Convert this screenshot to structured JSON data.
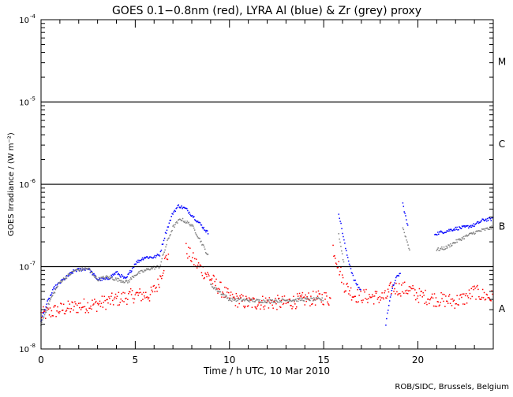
{
  "chart_data": {
    "type": "scatter",
    "title": "GOES 0.1−0.8nm (red), LYRA Al (blue) & Zr (grey) proxy",
    "xlabel": "Time / h UTC, 10 Mar 2010",
    "ylabel": "GOES Irradiance / (W m⁻²)",
    "xlim": [
      0,
      24
    ],
    "ylim": [
      1e-08,
      0.0001
    ],
    "yscale": "log",
    "xticks": [
      0,
      5,
      10,
      15,
      20
    ],
    "xtick_labels": [
      "0",
      "5",
      "10",
      "15",
      "20"
    ],
    "yticks": [
      1e-08,
      1e-07,
      1e-06,
      1e-05,
      0.0001
    ],
    "ytick_exponents": [
      "-8",
      "-7",
      "-6",
      "-5",
      "-4"
    ],
    "ytick_base": "10",
    "class_lines": [
      1e-07,
      1e-06,
      1e-05
    ],
    "class_labels": [
      {
        "label": "A",
        "value": 3.16e-08
      },
      {
        "label": "B",
        "value": 3.16e-07
      },
      {
        "label": "C",
        "value": 3.16e-06
      },
      {
        "label": "M",
        "value": 3.16e-05
      }
    ],
    "credit": "ROB/SIDC, Brussels, Belgium",
    "series": [
      {
        "name": "GOES 0.1-0.8nm",
        "color": "#ff0000",
        "noise": 0.09,
        "segments": [
          [
            [
              0,
              2.6e-08
            ],
            [
              1,
              3e-08
            ],
            [
              2,
              3.3e-08
            ],
            [
              3,
              3.5e-08
            ],
            [
              4,
              4e-08
            ],
            [
              5,
              4.5e-08
            ],
            [
              5.8,
              4.5e-08
            ],
            [
              6.2,
              6e-08
            ],
            [
              6.6,
              1.2e-07
            ],
            [
              6.8,
              1.5e-07
            ]
          ],
          [
            [
              7.7,
              1.6e-07
            ],
            [
              8.2,
              1.1e-07
            ],
            [
              8.8,
              8e-08
            ],
            [
              9.3,
              6e-08
            ],
            [
              10,
              4.2e-08
            ],
            [
              11,
              3.6e-08
            ],
            [
              12,
              3.7e-08
            ],
            [
              13,
              3.6e-08
            ],
            [
              14,
              4e-08
            ],
            [
              15,
              4.2e-08
            ],
            [
              15.4,
              4e-08
            ]
          ],
          [
            [
              15.5,
              1.7e-07
            ],
            [
              15.8,
              1e-07
            ],
            [
              16.1,
              6e-08
            ],
            [
              16.6,
              4.5e-08
            ],
            [
              17.5,
              4.3e-08
            ],
            [
              18.3,
              4.2e-08
            ],
            [
              18.6,
              5.5e-08
            ],
            [
              19.5,
              5.3e-08
            ],
            [
              20,
              4.5e-08
            ],
            [
              21,
              4e-08
            ],
            [
              22,
              3.8e-08
            ],
            [
              22.6,
              4.2e-08
            ],
            [
              23,
              5e-08
            ],
            [
              23.4,
              4.5e-08
            ],
            [
              24,
              4.2e-08
            ]
          ]
        ]
      },
      {
        "name": "LYRA Al proxy",
        "color": "#0000ff",
        "noise": 0.02,
        "segments": [
          [
            [
              0,
              2.2e-08
            ],
            [
              0.3,
              3.5e-08
            ],
            [
              0.7,
              5.5e-08
            ],
            [
              1.2,
              7e-08
            ],
            [
              1.8,
              9e-08
            ],
            [
              2.5,
              9.5e-08
            ],
            [
              3,
              7e-08
            ],
            [
              3.5,
              7e-08
            ],
            [
              4,
              8.5e-08
            ],
            [
              4.5,
              7e-08
            ],
            [
              5,
              1.1e-07
            ],
            [
              5.5,
              1.3e-07
            ],
            [
              6,
              1.3e-07
            ],
            [
              6.3,
              1.4e-07
            ],
            [
              6.6,
              2.5e-07
            ],
            [
              7,
              4.5e-07
            ],
            [
              7.3,
              5.5e-07
            ],
            [
              7.7,
              5e-07
            ],
            [
              8.2,
              3.8e-07
            ],
            [
              8.6,
              3e-07
            ],
            [
              8.9,
              2.5e-07
            ]
          ],
          [
            [
              15.8,
              4.5e-07
            ],
            [
              16.2,
              1.5e-07
            ],
            [
              16.6,
              7e-08
            ],
            [
              17,
              5e-08
            ]
          ],
          [
            [
              18.3,
              2e-08
            ],
            [
              18.5,
              4e-08
            ],
            [
              18.8,
              7e-08
            ],
            [
              19.1,
              8.5e-08
            ]
          ],
          [
            [
              19.2,
              5.8e-07
            ],
            [
              19.5,
              2.8e-07
            ]
          ],
          [
            [
              20.9,
              2.5e-07
            ],
            [
              21.5,
              2.7e-07
            ],
            [
              22,
              2.9e-07
            ],
            [
              22.5,
              3e-07
            ],
            [
              23,
              3.2e-07
            ],
            [
              23.5,
              3.7e-07
            ],
            [
              24,
              3.8e-07
            ]
          ]
        ]
      },
      {
        "name": "LYRA Zr proxy",
        "color": "#808080",
        "noise": 0.02,
        "segments": [
          [
            [
              0,
              2e-08
            ],
            [
              0.5,
              4e-08
            ],
            [
              1,
              6.5e-08
            ],
            [
              1.8,
              9e-08
            ],
            [
              2.5,
              9.5e-08
            ],
            [
              3,
              7e-08
            ],
            [
              3.5,
              7.5e-08
            ],
            [
              4,
              7e-08
            ],
            [
              4.6,
              6.5e-08
            ],
            [
              5,
              8e-08
            ],
            [
              5.8,
              9.5e-08
            ],
            [
              6.3,
              1e-07
            ],
            [
              6.7,
              2e-07
            ],
            [
              7,
              3e-07
            ],
            [
              7.4,
              3.8e-07
            ],
            [
              8,
              3.2e-07
            ],
            [
              8.5,
              2e-07
            ],
            [
              8.9,
              1.3e-07
            ]
          ],
          [
            [
              9,
              6e-08
            ],
            [
              10,
              4e-08
            ],
            [
              12,
              3.8e-08
            ],
            [
              14,
              4e-08
            ],
            [
              15,
              4e-08
            ]
          ],
          [
            [
              15.8,
              2.5e-07
            ],
            [
              16.1,
              1e-07
            ]
          ],
          [
            [
              19.2,
              3e-07
            ],
            [
              19.6,
              1.5e-07
            ]
          ],
          [
            [
              21,
              1.6e-07
            ],
            [
              21.5,
              1.7e-07
            ],
            [
              22,
              2e-07
            ],
            [
              22.5,
              2.3e-07
            ],
            [
              23,
              2.6e-07
            ],
            [
              24,
              3e-07
            ]
          ]
        ]
      }
    ]
  }
}
